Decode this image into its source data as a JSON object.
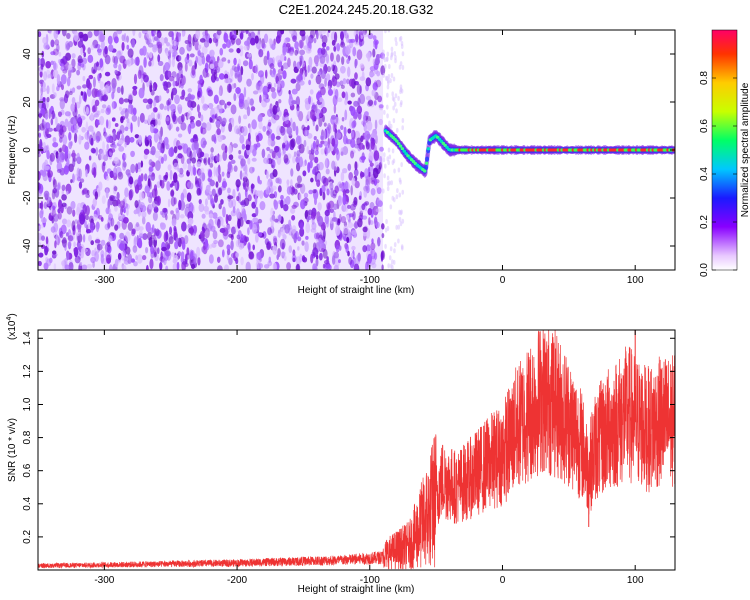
{
  "figure_title": "C2E1.2024.245.20.18.G32",
  "chart_data": [
    {
      "type": "heatmap",
      "title": "C2E1.2024.245.20.18.G32",
      "xlabel": "Height of straight line (km)",
      "ylabel": "Frequency (Hz)",
      "xlim": [
        -350,
        130
      ],
      "ylim": [
        -50,
        50
      ],
      "x_ticks": [
        -300,
        -200,
        -100,
        0,
        100
      ],
      "y_ticks": [
        -40,
        -20,
        0,
        20,
        40
      ],
      "colorbar": {
        "label": "Normalized spectral amplitude",
        "range": [
          0,
          1
        ],
        "ticks": [
          0.0,
          0.2,
          0.4,
          0.6,
          0.8
        ]
      },
      "noise_region_x": [
        -350,
        -90
      ],
      "signal_trace": [
        {
          "x": -88,
          "y": 8
        },
        {
          "x": -80,
          "y": 4
        },
        {
          "x": -72,
          "y": -2
        },
        {
          "x": -65,
          "y": -6
        },
        {
          "x": -58,
          "y": -9
        },
        {
          "x": -55,
          "y": 4
        },
        {
          "x": -50,
          "y": 6
        },
        {
          "x": -45,
          "y": 3
        },
        {
          "x": -40,
          "y": 0
        },
        {
          "x": -30,
          "y": 0
        },
        {
          "x": -15,
          "y": 0
        },
        {
          "x": 0,
          "y": 0
        },
        {
          "x": 20,
          "y": 0
        },
        {
          "x": 40,
          "y": 0
        },
        {
          "x": 60,
          "y": 0
        },
        {
          "x": 80,
          "y": 0
        },
        {
          "x": 100,
          "y": 0
        },
        {
          "x": 130,
          "y": 0
        }
      ]
    },
    {
      "type": "line",
      "xlabel": "Height of straight line (km)",
      "ylabel": "SNR (10 * v/v)",
      "y_multiplier": "(x10",
      "y_multiplier_exp": "4",
      "y_multiplier_close": ")",
      "xlim": [
        -350,
        130
      ],
      "ylim": [
        0,
        14500
      ],
      "x_ticks": [
        -300,
        -200,
        -100,
        0,
        100
      ],
      "y_ticks": [
        2000,
        4000,
        6000,
        8000,
        10000,
        12000,
        14000
      ],
      "y_tick_labels": [
        "0.2",
        "0.4",
        "0.6",
        "0.8",
        "1.0",
        "1.2",
        "1.4"
      ],
      "color": "#ee3333",
      "envelope": [
        {
          "x": -350,
          "y": 300
        },
        {
          "x": -200,
          "y": 500
        },
        {
          "x": -120,
          "y": 700
        },
        {
          "x": -90,
          "y": 900
        },
        {
          "x": -70,
          "y": 1500
        },
        {
          "x": -55,
          "y": 3500
        },
        {
          "x": -45,
          "y": 5500
        },
        {
          "x": -35,
          "y": 5000
        },
        {
          "x": -25,
          "y": 5500
        },
        {
          "x": -10,
          "y": 6500
        },
        {
          "x": 0,
          "y": 7000
        },
        {
          "x": 10,
          "y": 8500
        },
        {
          "x": 20,
          "y": 9500
        },
        {
          "x": 30,
          "y": 10500
        },
        {
          "x": 40,
          "y": 10000
        },
        {
          "x": 50,
          "y": 9000
        },
        {
          "x": 60,
          "y": 7500
        },
        {
          "x": 65,
          "y": 6000
        },
        {
          "x": 70,
          "y": 7500
        },
        {
          "x": 80,
          "y": 8500
        },
        {
          "x": 95,
          "y": 9500
        },
        {
          "x": 100,
          "y": 9000
        },
        {
          "x": 110,
          "y": 8500
        },
        {
          "x": 120,
          "y": 9000
        },
        {
          "x": 130,
          "y": 9000
        }
      ],
      "peaks": [
        {
          "x": 37,
          "y": 13700
        },
        {
          "x": 100,
          "y": 14500
        },
        {
          "x": 65,
          "y": 2600
        }
      ]
    }
  ]
}
